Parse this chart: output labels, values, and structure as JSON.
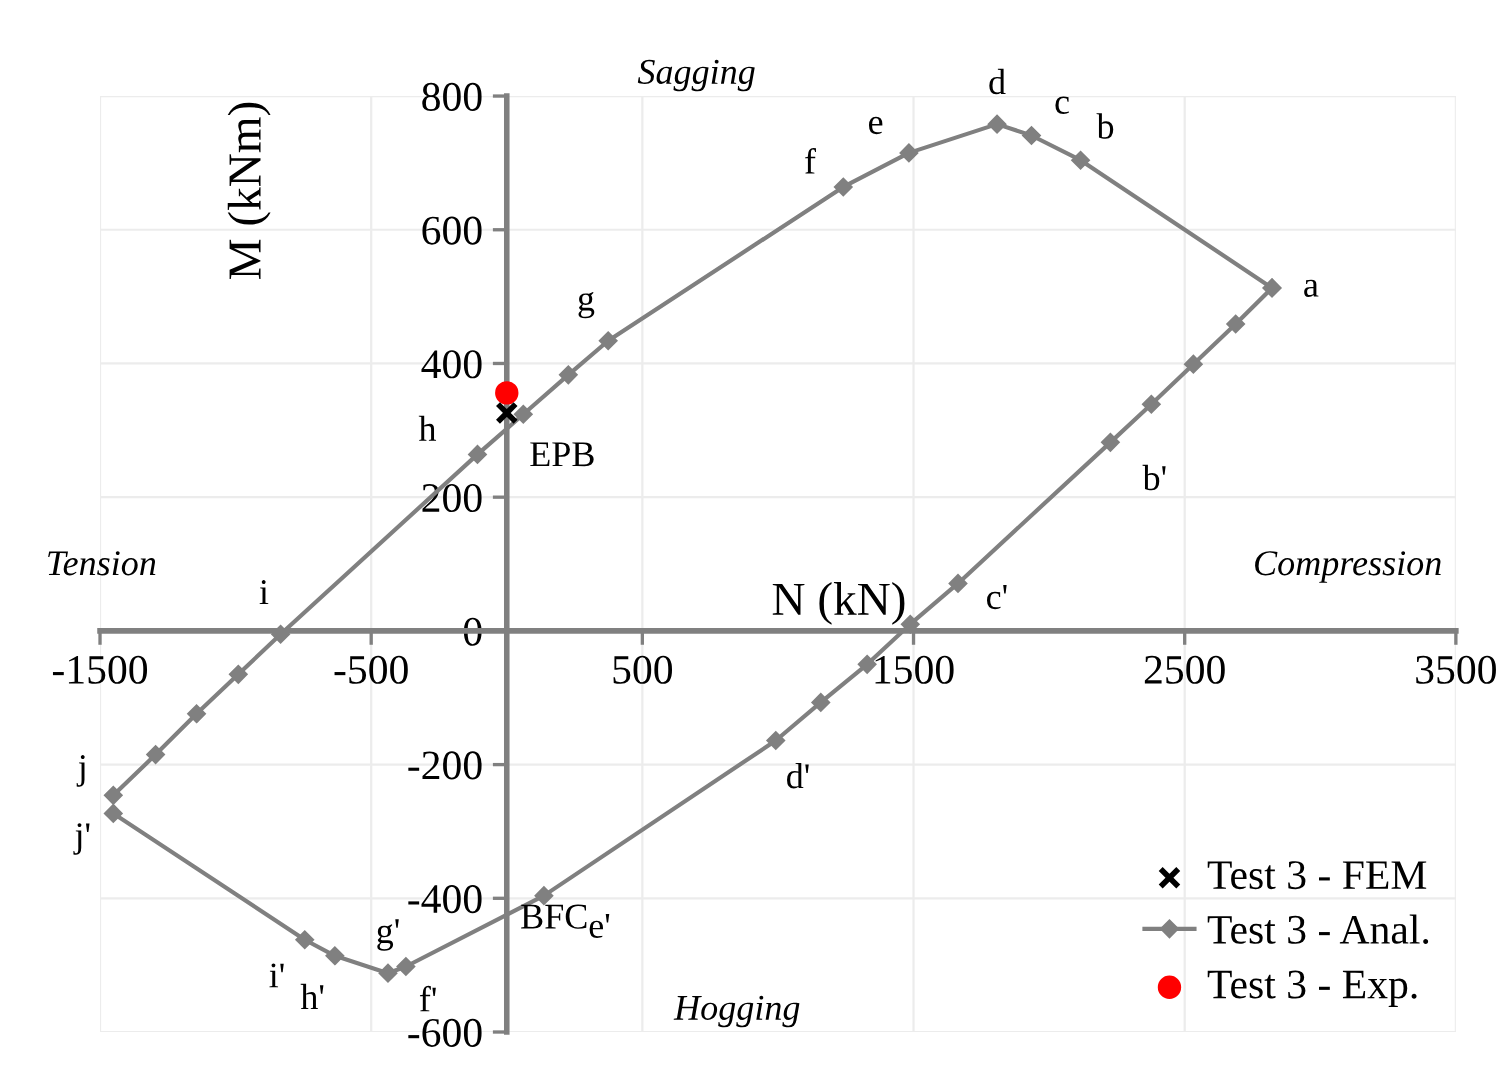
{
  "chart_data": {
    "type": "line",
    "xlabel": "N (kN)",
    "ylabel": "M (kNm)",
    "xlim": [
      -1500,
      3500
    ],
    "xticks": [
      -1500,
      -500,
      500,
      1500,
      2500,
      3500
    ],
    "ylim": [
      -600,
      800
    ],
    "yticks": [
      -600,
      -400,
      -200,
      0,
      200,
      400,
      600,
      800
    ],
    "grid": true,
    "legend": "bottom right",
    "series": [
      {
        "name": "Test 3 - FEM",
        "type": "scatter",
        "marker": "cross",
        "color": "#000000",
        "x": [
          0
        ],
        "values": [
          326
        ]
      },
      {
        "name": "Test 3 - Anal.",
        "marker": "diamond",
        "color": "#808080",
        "x": [
          -1451,
          -1295,
          -1144,
          -990,
          -834,
          -108,
          61,
          227,
          374,
          1241,
          1483,
          1808,
          1935,
          2116,
          2822
        ],
        "values": [
          -246,
          -185,
          -124,
          -65,
          -5,
          264,
          324,
          383,
          434,
          664,
          715,
          758,
          741,
          704,
          513
        ]
      },
      {
        "marker": "diamond",
        "color": "#808080",
        "x": [
          -1451,
          -745,
          -634,
          -438,
          -372,
          137,
          992,
          1158,
          1329,
          1488,
          1664,
          2226,
          2377,
          2532,
          2688,
          2822
        ],
        "values": [
          -273,
          -462,
          -486,
          -512,
          -502,
          -396,
          -164,
          -107,
          -50,
          10,
          71,
          282,
          339,
          399,
          459,
          513
        ]
      },
      {
        "name": "Test 3 - Exp.",
        "type": "scatter",
        "marker": "circle",
        "color": "#ff0000",
        "x": [
          0
        ],
        "values": [
          356
        ]
      }
    ],
    "annotations": [
      "Sagging",
      "Tension",
      "Compression",
      "Hogging",
      "BFC",
      {
        "text": "a",
        "x": 2822,
        "y": 513
      },
      {
        "text": "b",
        "x": 2116,
        "y": 704
      },
      {
        "text": "c",
        "x": 1935,
        "y": 741
      },
      {
        "text": "d",
        "x": 1808,
        "y": 758
      },
      {
        "text": "e",
        "x": 1483,
        "y": 715
      },
      {
        "text": "f",
        "x": 1241,
        "y": 664
      },
      {
        "text": "g",
        "x": 374,
        "y": 434
      },
      {
        "text": "h",
        "x": -108,
        "y": 264
      },
      {
        "text": "i",
        "x": -834,
        "y": -5
      },
      {
        "text": "j",
        "x": -1451,
        "y": -246
      },
      {
        "text": "j'",
        "x": -1451,
        "y": -273
      },
      {
        "text": "i'",
        "x": -745,
        "y": -462
      },
      {
        "text": "h'",
        "x": -634,
        "y": -486
      },
      {
        "text": "g'",
        "x": -438,
        "y": -512
      },
      {
        "text": "f'",
        "x": -372,
        "y": -502
      },
      {
        "text": "e'",
        "x": 137,
        "y": -396
      },
      {
        "text": "d'",
        "x": 992,
        "y": -164
      },
      {
        "text": "c'",
        "x": 1664,
        "y": 71
      },
      {
        "text": "b'",
        "x": 2226,
        "y": 282
      },
      {
        "text": "EPB",
        "x": 0,
        "y": 326
      }
    ]
  }
}
